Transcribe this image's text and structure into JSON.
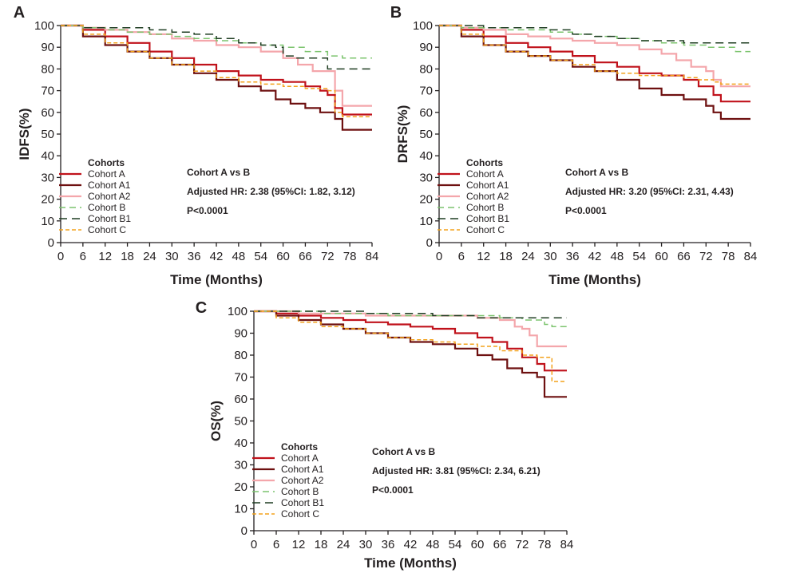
{
  "chart_data": [
    {
      "type": "line",
      "subtype": "kaplan-meier",
      "panel_label": "A",
      "ylabel": "IDFS(%)",
      "xlabel": "Time (Months)",
      "xlim": [
        0,
        84
      ],
      "ylim": [
        0,
        100
      ],
      "xticks": [
        "0",
        "6",
        "12",
        "18",
        "24",
        "30",
        "36",
        "42",
        "48",
        "54",
        "60",
        "66",
        "72",
        "78",
        "84"
      ],
      "yticks": [
        "0",
        "10",
        "20",
        "30",
        "40",
        "50",
        "60",
        "70",
        "80",
        "90",
        "100"
      ],
      "legend_title": "Cohorts",
      "annotation": {
        "line1": "Cohort A vs B",
        "line2": "Adjusted HR: 2.38 (95%CI: 1.82, 3.12)",
        "line3": "P<0.0001"
      },
      "series": [
        {
          "name": "Cohort A",
          "color": "#c0121b",
          "dash": "solid",
          "width": 2.2,
          "x": [
            0,
            6,
            12,
            18,
            24,
            30,
            36,
            42,
            48,
            54,
            60,
            66,
            70,
            72,
            74,
            76,
            84
          ],
          "y": [
            100,
            98,
            95,
            92,
            88,
            85,
            82,
            79,
            77,
            75,
            74,
            72,
            70,
            68,
            62,
            59,
            59
          ]
        },
        {
          "name": "Cohort A1",
          "color": "#6e1010",
          "dash": "solid",
          "width": 2.2,
          "x": [
            0,
            6,
            12,
            18,
            24,
            30,
            36,
            42,
            48,
            54,
            58,
            62,
            66,
            70,
            74,
            76,
            84
          ],
          "y": [
            100,
            95,
            91,
            88,
            85,
            82,
            78,
            75,
            72,
            70,
            66,
            64,
            62,
            60,
            57,
            52,
            52
          ]
        },
        {
          "name": "Cohort A2",
          "color": "#f4a6ab",
          "dash": "solid",
          "width": 2.2,
          "x": [
            0,
            6,
            12,
            18,
            24,
            30,
            36,
            42,
            48,
            54,
            60,
            64,
            68,
            72,
            74,
            76,
            84
          ],
          "y": [
            100,
            99,
            98,
            97,
            96,
            94,
            93,
            91,
            90,
            88,
            85,
            82,
            79,
            79,
            70,
            63,
            63
          ]
        },
        {
          "name": "Cohort B",
          "color": "#7cc46e",
          "dash": "8,5",
          "width": 1.5,
          "x": [
            0,
            6,
            12,
            18,
            24,
            30,
            36,
            42,
            48,
            54,
            60,
            66,
            72,
            76,
            84
          ],
          "y": [
            100,
            99,
            98,
            97,
            96,
            95,
            94,
            93,
            92,
            91,
            90,
            88,
            86,
            85,
            85
          ]
        },
        {
          "name": "Cohort B1",
          "color": "#1f3d22",
          "dash": "10,6",
          "width": 1.5,
          "x": [
            0,
            6,
            12,
            18,
            24,
            30,
            36,
            42,
            48,
            54,
            58,
            60,
            63,
            66,
            70,
            72,
            84
          ],
          "y": [
            100,
            99,
            99,
            99,
            98,
            97,
            96,
            94,
            92,
            91,
            90,
            86,
            85,
            85,
            85,
            80,
            80
          ]
        },
        {
          "name": "Cohort C",
          "color": "#f3a21b",
          "dash": "5,3",
          "width": 1.5,
          "x": [
            0,
            6,
            12,
            18,
            24,
            30,
            36,
            42,
            48,
            54,
            60,
            66,
            70,
            72,
            74,
            76,
            84
          ],
          "y": [
            100,
            96,
            92,
            88,
            85,
            82,
            79,
            76,
            74,
            73,
            72,
            71,
            71,
            70,
            60,
            58,
            58
          ]
        }
      ]
    },
    {
      "type": "line",
      "subtype": "kaplan-meier",
      "panel_label": "B",
      "ylabel": "DRFS(%)",
      "xlabel": "Time (Months)",
      "xlim": [
        0,
        84
      ],
      "ylim": [
        0,
        100
      ],
      "xticks": [
        "0",
        "6",
        "12",
        "18",
        "24",
        "30",
        "36",
        "42",
        "48",
        "54",
        "60",
        "66",
        "72",
        "78",
        "84"
      ],
      "yticks": [
        "0",
        "10",
        "20",
        "30",
        "40",
        "50",
        "60",
        "70",
        "80",
        "90",
        "100"
      ],
      "legend_title": "Cohorts",
      "annotation": {
        "line1": "Cohort A vs B",
        "line2": "Adjusted HR: 3.20 (95%CI: 2.31, 4.43)",
        "line3": "P<0.0001"
      },
      "series": [
        {
          "name": "Cohort A",
          "color": "#c0121b",
          "dash": "solid",
          "width": 2.2,
          "x": [
            0,
            6,
            12,
            18,
            24,
            30,
            36,
            42,
            48,
            54,
            60,
            66,
            70,
            72,
            74,
            76,
            84
          ],
          "y": [
            100,
            98,
            95,
            92,
            90,
            88,
            86,
            83,
            81,
            78,
            77,
            75,
            72,
            72,
            68,
            65,
            65
          ]
        },
        {
          "name": "Cohort A1",
          "color": "#6e1010",
          "dash": "solid",
          "width": 2.2,
          "x": [
            0,
            6,
            12,
            18,
            24,
            30,
            36,
            42,
            48,
            54,
            60,
            66,
            70,
            72,
            74,
            76,
            84
          ],
          "y": [
            100,
            95,
            91,
            88,
            86,
            84,
            81,
            79,
            75,
            71,
            68,
            66,
            66,
            63,
            60,
            57,
            57
          ]
        },
        {
          "name": "Cohort A2",
          "color": "#f4a6ab",
          "dash": "solid",
          "width": 2.2,
          "x": [
            0,
            6,
            12,
            18,
            24,
            30,
            36,
            42,
            48,
            54,
            60,
            64,
            68,
            72,
            74,
            76,
            84
          ],
          "y": [
            100,
            99,
            98,
            96,
            95,
            94,
            93,
            92,
            91,
            89,
            87,
            84,
            81,
            79,
            75,
            72,
            72
          ]
        },
        {
          "name": "Cohort B",
          "color": "#7cc46e",
          "dash": "8,5",
          "width": 1.5,
          "x": [
            0,
            6,
            12,
            18,
            24,
            30,
            36,
            42,
            48,
            54,
            60,
            66,
            72,
            76,
            80,
            84
          ],
          "y": [
            100,
            99,
            99,
            98,
            98,
            97,
            96,
            95,
            94,
            93,
            92,
            91,
            90,
            90,
            88,
            88
          ]
        },
        {
          "name": "Cohort B1",
          "color": "#1f3d22",
          "dash": "10,6",
          "width": 1.5,
          "x": [
            0,
            6,
            12,
            18,
            24,
            30,
            36,
            42,
            48,
            54,
            60,
            66,
            72,
            84
          ],
          "y": [
            100,
            100,
            99,
            99,
            99,
            98,
            96,
            95,
            94,
            93,
            93,
            92,
            92,
            92
          ]
        },
        {
          "name": "Cohort C",
          "color": "#f3a21b",
          "dash": "5,3",
          "width": 1.5,
          "x": [
            0,
            6,
            12,
            18,
            24,
            30,
            36,
            42,
            48,
            54,
            60,
            66,
            70,
            72,
            74,
            76,
            84
          ],
          "y": [
            100,
            96,
            91,
            88,
            86,
            84,
            82,
            79,
            78,
            77,
            77,
            76,
            75,
            75,
            74,
            73,
            73
          ]
        }
      ]
    },
    {
      "type": "line",
      "subtype": "kaplan-meier",
      "panel_label": "C",
      "ylabel": "OS(%)",
      "xlabel": "Time (Months)",
      "xlim": [
        0,
        84
      ],
      "ylim": [
        0,
        100
      ],
      "xticks": [
        "0",
        "6",
        "12",
        "18",
        "24",
        "30",
        "36",
        "42",
        "48",
        "54",
        "60",
        "66",
        "72",
        "78",
        "84"
      ],
      "yticks": [
        "0",
        "10",
        "20",
        "30",
        "40",
        "50",
        "60",
        "70",
        "80",
        "90",
        "100"
      ],
      "legend_title": "Cohorts",
      "annotation": {
        "line1": "Cohort A vs B",
        "line2": "Adjusted HR: 3.81 (95%CI: 2.34, 6.21)",
        "line3": "P<0.0001"
      },
      "series": [
        {
          "name": "Cohort A",
          "color": "#c0121b",
          "dash": "solid",
          "width": 2.2,
          "x": [
            0,
            6,
            12,
            18,
            24,
            30,
            36,
            42,
            48,
            54,
            60,
            64,
            68,
            72,
            76,
            78,
            84
          ],
          "y": [
            100,
            99,
            98,
            97,
            96,
            95,
            94,
            93,
            92,
            90,
            88,
            86,
            83,
            79,
            76,
            73,
            73
          ]
        },
        {
          "name": "Cohort A1",
          "color": "#6e1010",
          "dash": "solid",
          "width": 2.2,
          "x": [
            0,
            6,
            12,
            18,
            24,
            30,
            36,
            42,
            48,
            54,
            60,
            64,
            68,
            72,
            76,
            78,
            84
          ],
          "y": [
            100,
            98,
            96,
            94,
            92,
            90,
            88,
            86,
            85,
            83,
            80,
            78,
            74,
            72,
            70,
            61,
            61
          ]
        },
        {
          "name": "Cohort A2",
          "color": "#f4a6ab",
          "dash": "solid",
          "width": 2.2,
          "x": [
            0,
            6,
            12,
            18,
            24,
            30,
            36,
            42,
            48,
            54,
            60,
            66,
            70,
            72,
            74,
            76,
            84
          ],
          "y": [
            100,
            100,
            99,
            99,
            99,
            98,
            98,
            98,
            98,
            98,
            97,
            96,
            93,
            92,
            89,
            84,
            84
          ]
        },
        {
          "name": "Cohort B",
          "color": "#7cc46e",
          "dash": "8,5",
          "width": 1.5,
          "x": [
            0,
            6,
            12,
            18,
            24,
            30,
            36,
            42,
            48,
            54,
            60,
            66,
            72,
            76,
            78,
            80,
            84
          ],
          "y": [
            100,
            100,
            100,
            99,
            99,
            99,
            98,
            98,
            98,
            98,
            98,
            97,
            96,
            96,
            94,
            93,
            93
          ]
        },
        {
          "name": "Cohort B1",
          "color": "#1f3d22",
          "dash": "10,6",
          "width": 1.5,
          "x": [
            0,
            6,
            12,
            18,
            24,
            30,
            36,
            42,
            48,
            54,
            60,
            66,
            72,
            84
          ],
          "y": [
            100,
            100,
            100,
            100,
            100,
            99,
            99,
            99,
            98,
            98,
            97,
            97,
            97,
            97
          ]
        },
        {
          "name": "Cohort C",
          "color": "#f3a21b",
          "dash": "5,3",
          "width": 1.5,
          "x": [
            0,
            6,
            12,
            18,
            24,
            30,
            36,
            42,
            48,
            54,
            60,
            66,
            72,
            76,
            78,
            80,
            84
          ],
          "y": [
            100,
            97,
            95,
            93,
            92,
            90,
            88,
            87,
            86,
            85,
            84,
            82,
            80,
            79,
            79,
            68,
            68
          ]
        }
      ]
    }
  ]
}
